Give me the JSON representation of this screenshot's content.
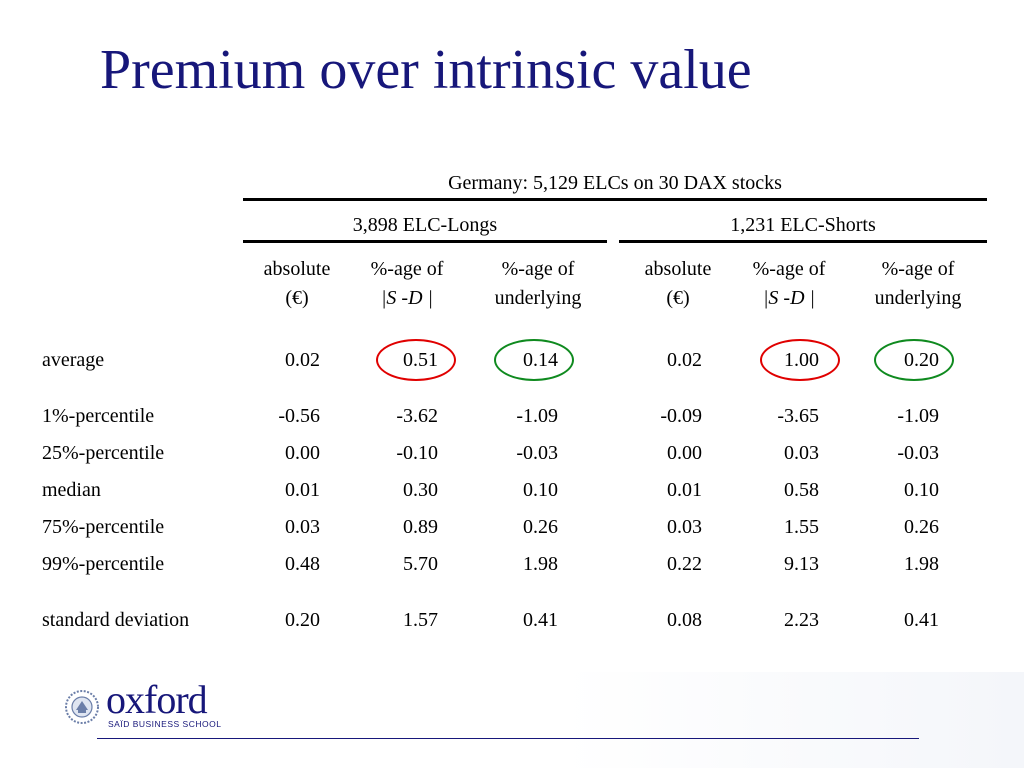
{
  "title": "Premium over intrinsic value",
  "table": {
    "caption": "Germany: 5,129 ELCs on 30 DAX stocks",
    "group_long": "3,898 ELC-Longs",
    "group_short": "1,231 ELC-Shorts",
    "col_heads": [
      {
        "line1": "absolute",
        "line2": "(€)"
      },
      {
        "line1": "%-age of",
        "line2": "|S -D |"
      },
      {
        "line1": "%-age of",
        "line2": "underlying"
      },
      {
        "line1": "absolute",
        "line2": "(€)"
      },
      {
        "line1": "%-age of",
        "line2": "|S -D |"
      },
      {
        "line1": "%-age of",
        "line2": "underlying"
      }
    ],
    "rows": [
      {
        "label": "average",
        "values": [
          "0.02",
          "0.51",
          "0.14",
          "0.02",
          "1.00",
          "0.20"
        ]
      },
      {
        "label": "1%-percentile",
        "values": [
          "-0.56",
          "-3.62",
          "-1.09",
          "-0.09",
          "-3.65",
          "-1.09"
        ]
      },
      {
        "label": "25%-percentile",
        "values": [
          "0.00",
          "-0.10",
          "-0.03",
          "0.00",
          "0.03",
          "-0.03"
        ]
      },
      {
        "label": "median",
        "values": [
          "0.01",
          "0.30",
          "0.10",
          "0.01",
          "0.58",
          "0.10"
        ]
      },
      {
        "label": "75%-percentile",
        "values": [
          "0.03",
          "0.89",
          "0.26",
          "0.03",
          "1.55",
          "0.26"
        ]
      },
      {
        "label": "99%-percentile",
        "values": [
          "0.48",
          "5.70",
          "1.98",
          "0.22",
          "9.13",
          "1.98"
        ]
      },
      {
        "label": "standard deviation",
        "values": [
          "0.20",
          "1.57",
          "0.41",
          "0.08",
          "2.23",
          "0.41"
        ]
      }
    ],
    "highlight_colors": {
      "red": "#e00000",
      "green": "#0f8a1f"
    }
  },
  "logo": {
    "wordmark": "oxford",
    "subtitle": "SAÏD BUSINESS SCHOOL"
  },
  "colors": {
    "title": "#17177a",
    "footer_rule": "#17177a"
  }
}
